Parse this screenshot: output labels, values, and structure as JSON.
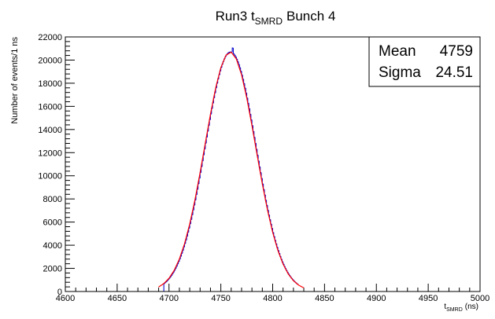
{
  "chart_data": {
    "type": "histogram",
    "title": {
      "text": "Run3 t",
      "subscript": "SMRD",
      "suffix": "Bunch 4"
    },
    "y_label": "Number of events/1 ns",
    "x_label": {
      "text": "t",
      "subscript": "SMRD",
      "suffix": "(ns)"
    },
    "xlim": [
      4600,
      5000
    ],
    "ylim": [
      0,
      22000
    ],
    "xticks": [
      4600,
      4650,
      4700,
      4750,
      4800,
      4850,
      4900,
      4950,
      5000
    ],
    "yticks": [
      0,
      2000,
      4000,
      6000,
      8000,
      10000,
      12000,
      14000,
      16000,
      18000,
      20000,
      22000
    ],
    "color": "#0000cc",
    "bins": [
      4695,
      4696,
      4697,
      4698,
      4699,
      4700,
      4701,
      4702,
      4703,
      4704,
      4705,
      4706,
      4707,
      4708,
      4709,
      4710,
      4711,
      4712,
      4713,
      4714,
      4715,
      4716,
      4717,
      4718,
      4719,
      4720,
      4721,
      4722,
      4723,
      4724,
      4725,
      4726,
      4727,
      4728,
      4729,
      4730,
      4731,
      4732,
      4733,
      4734,
      4735,
      4736,
      4737,
      4738,
      4739,
      4740,
      4741,
      4742,
      4743,
      4744,
      4745,
      4746,
      4747,
      4748,
      4749,
      4750,
      4751,
      4752,
      4753,
      4754,
      4755,
      4756,
      4757,
      4758,
      4759,
      4760,
      4761,
      4762,
      4763,
      4764,
      4765,
      4766,
      4767,
      4768,
      4769,
      4770,
      4771,
      4772,
      4773,
      4774,
      4775,
      4776,
      4777,
      4778,
      4779,
      4780,
      4781,
      4782,
      4783,
      4784,
      4785,
      4786,
      4787,
      4788,
      4789,
      4790,
      4791,
      4792,
      4793,
      4794,
      4795,
      4796,
      4797,
      4798,
      4799,
      4800,
      4801,
      4802,
      4803,
      4804,
      4805,
      4806,
      4807,
      4808,
      4809,
      4810,
      4811,
      4812,
      4813,
      4814,
      4815,
      4816,
      4817,
      4818,
      4819,
      4820,
      4821,
      4822,
      4823,
      4824,
      4825
    ],
    "values": [
      684,
      760,
      843,
      934,
      1033,
      1140,
      1257,
      1383,
      1520,
      1667,
      1825,
      1995,
      2178,
      2373,
      2581,
      2804,
      3040,
      3291,
      3555,
      3837,
      4133,
      4443,
      4769,
      5109,
      5466,
      5837,
      6222,
      6622,
      7036,
      7464,
      7905,
      8358,
      8824,
      9300,
      9787,
      10279,
      10781,
      11286,
      11796,
      12307,
      12820,
      13332,
      13841,
      14345,
      14842,
      15331,
      15809,
      16276,
      16728,
      17165,
      17585,
      17984,
      18362,
      18717,
      19047,
      19350,
      19626,
      19873,
      20089,
      20274,
      20426,
      20545,
      20631,
      20683,
      20700,
      20683,
      21050,
      20545,
      20426,
      20274,
      20089,
      19873,
      19626,
      19350,
      19047,
      18717,
      18362,
      17984,
      17585,
      17165,
      16728,
      16276,
      15809,
      15331,
      14842,
      14345,
      13841,
      13332,
      12820,
      12307,
      11796,
      11286,
      10781,
      10279,
      9787,
      9300,
      8824,
      8358,
      7905,
      7464,
      7036,
      6622,
      6222,
      5837,
      5466,
      5109,
      4769,
      4443,
      4133,
      3837,
      3555,
      3291,
      3040,
      2804,
      2581,
      2373,
      2178,
      1995,
      1825,
      1667,
      1520,
      1383,
      1257,
      1140,
      1033,
      934,
      843,
      760,
      684,
      614
    ],
    "fit": {
      "type": "line",
      "color": "#ff0000",
      "x": [
        4690,
        4695,
        4700,
        4705,
        4710,
        4715,
        4720,
        4725,
        4730,
        4735,
        4740,
        4745,
        4750,
        4755,
        4760,
        4765,
        4770,
        4775,
        4780,
        4785,
        4790,
        4795,
        4800,
        4805,
        4810,
        4815,
        4820,
        4825,
        4830
      ],
      "values": [
        394,
        684,
        1140,
        1825,
        2804,
        4133,
        5837,
        7905,
        10279,
        12820,
        15331,
        17585,
        19350,
        20426,
        20683,
        20089,
        18717,
        16728,
        14345,
        11796,
        9300,
        7036,
        5109,
        3555,
        2373,
        1520,
        934,
        551,
        312
      ]
    },
    "stats": [
      {
        "label": "Mean",
        "value": 4759
      },
      {
        "label": "Sigma",
        "value": 24.51
      }
    ]
  }
}
